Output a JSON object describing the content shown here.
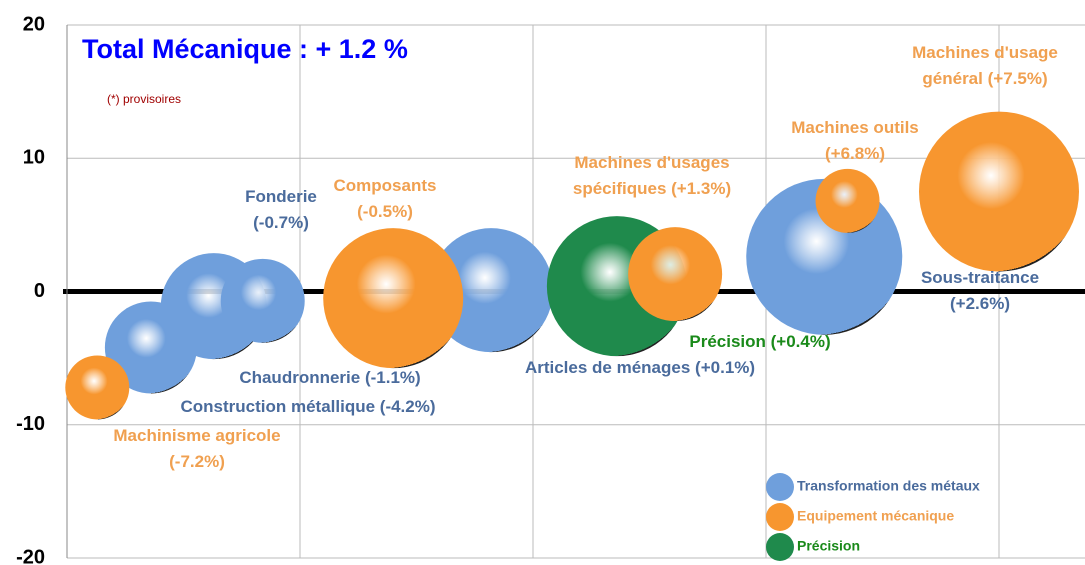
{
  "chart_data": {
    "type": "bubble",
    "title": "Total Mécanique : + 1.2 %",
    "note": "(*) provisoires",
    "xlim": [
      0,
      4.39
    ],
    "xgrid": [
      1,
      2,
      3,
      4
    ],
    "ylim": [
      -20,
      20
    ],
    "yticks": [
      -20,
      -10,
      0,
      10,
      20
    ],
    "grid": true,
    "series": [
      {
        "name": "Transformation des métaux",
        "color": "#6f9fdc",
        "label_color": "#4a6b9c",
        "names": [
          "Construction  métallique",
          "Chaudronnerie",
          "Fonderie",
          "Articles de ménages",
          "Sous-traitance"
        ],
        "x": [
          0.36,
          0.63,
          0.84,
          1.82,
          3.25
        ],
        "values": [
          -4.2,
          -1.1,
          -0.7,
          0.1,
          2.6
        ],
        "sizes": [
          46,
          53,
          42,
          62,
          78
        ],
        "value_labels": [
          "(-4.2%)",
          "(-1.1%)",
          "(-0.7%)",
          "(+0.1%)",
          "(+2.6%)"
        ]
      },
      {
        "name": "Précision",
        "color": "#1f8a4c",
        "label_color": "#1a8a1a",
        "names": [
          "Précision"
        ],
        "x": [
          2.36
        ],
        "values": [
          0.4
        ],
        "sizes": [
          70
        ],
        "value_labels": [
          "(+0.4%)"
        ]
      },
      {
        "name": "Equipement mécanique",
        "color": "#f7962f",
        "label_color": "#f0a050",
        "names": [
          "Machinisme agricole",
          "Composants",
          "Machines d'usages spécifiques",
          "Machines outils",
          "Machines d'usage général"
        ],
        "x": [
          0.13,
          1.4,
          2.61,
          3.35,
          4.0
        ],
        "values": [
          -7.2,
          -0.5,
          1.3,
          6.8,
          7.5
        ],
        "sizes": [
          32,
          70,
          47,
          32,
          80
        ],
        "value_labels": [
          "(-7.2%)",
          "(-0.5%)",
          "(+1.3%)",
          "(+6.8%)",
          "(+7.5%)"
        ]
      }
    ]
  }
}
